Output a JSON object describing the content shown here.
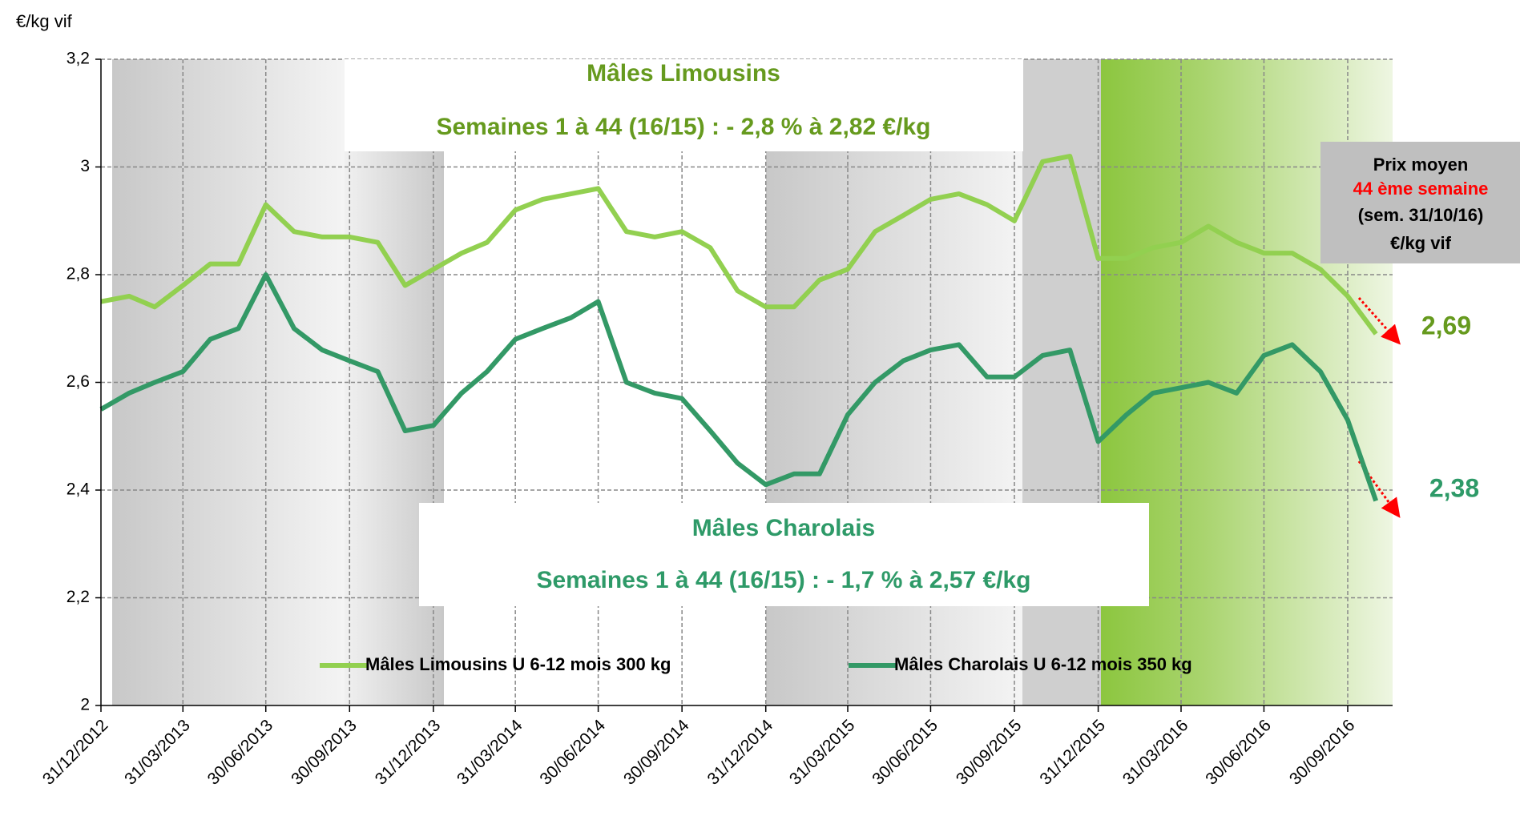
{
  "chart_data": {
    "type": "line",
    "y_label": "€/kg vif",
    "annotations": {
      "limousin_title": "Mâles Limousins",
      "limousin_sub": "Semaines 1 à 44 (16/15) : - 2,8 % à 2,82 €/kg",
      "charolais_title": "Mâles Charolais",
      "charolais_sub": "Semaines 1 à 44 (16/15) : - 1,7 % à 2,57 €/kg",
      "box_line1": "Prix moyen",
      "box_line2": "44 ème semaine",
      "box_line3": "(sem. 31/10/16)",
      "box_line4": "€/kg vif"
    },
    "x": [
      "31/12/2012",
      "31/01/2013",
      "28/02/2013",
      "31/03/2013",
      "30/04/2013",
      "31/05/2013",
      "30/06/2013",
      "31/07/2013",
      "31/08/2013",
      "30/09/2013",
      "31/10/2013",
      "30/11/2013",
      "31/12/2013",
      "31/01/2014",
      "28/02/2014",
      "31/03/2014",
      "30/04/2014",
      "31/05/2014",
      "30/06/2014",
      "31/07/2014",
      "31/08/2014",
      "30/09/2014",
      "31/10/2014",
      "30/11/2014",
      "31/12/2014",
      "31/01/2015",
      "28/02/2015",
      "31/03/2015",
      "30/04/2015",
      "31/05/2015",
      "30/06/2015",
      "31/07/2015",
      "31/08/2015",
      "30/09/2015",
      "31/10/2015",
      "30/11/2015",
      "31/12/2015",
      "31/01/2016",
      "29/02/2016",
      "31/03/2016",
      "30/04/2016",
      "31/05/2016",
      "30/06/2016",
      "31/07/2016",
      "31/08/2016",
      "30/09/2016",
      "31/10/2016"
    ],
    "series": [
      {
        "name": "Mâles Limousins U 6-12 mois 300 kg",
        "color": "#92d050",
        "label_color": "#669a1e",
        "end_label": "2,69",
        "values": [
          2.75,
          2.76,
          2.74,
          2.78,
          2.82,
          2.82,
          2.93,
          2.88,
          2.87,
          2.87,
          2.86,
          2.78,
          2.81,
          2.84,
          2.86,
          2.92,
          2.94,
          2.95,
          2.96,
          2.88,
          2.87,
          2.88,
          2.85,
          2.77,
          2.74,
          2.74,
          2.79,
          2.81,
          2.88,
          2.91,
          2.94,
          2.95,
          2.93,
          2.9,
          3.01,
          3.02,
          2.83,
          2.83,
          2.85,
          2.86,
          2.89,
          2.86,
          2.84,
          2.84,
          2.81,
          2.76,
          2.69
        ]
      },
      {
        "name": "Mâles Charolais U 6-12 mois 350 kg",
        "color": "#339966",
        "label_color": "#2e9a68",
        "end_label": "2,38",
        "values": [
          2.55,
          2.58,
          2.6,
          2.62,
          2.68,
          2.7,
          2.8,
          2.7,
          2.66,
          2.64,
          2.62,
          2.51,
          2.52,
          2.58,
          2.62,
          2.68,
          2.7,
          2.72,
          2.75,
          2.6,
          2.58,
          2.57,
          2.51,
          2.45,
          2.41,
          2.43,
          2.43,
          2.54,
          2.6,
          2.64,
          2.66,
          2.67,
          2.61,
          2.61,
          2.65,
          2.66,
          2.49,
          2.54,
          2.58,
          2.59,
          2.6,
          2.58,
          2.65,
          2.67,
          2.62,
          2.53,
          2.38
        ]
      }
    ],
    "xticks": [
      "31/12/2012",
      "31/03/2013",
      "30/06/2013",
      "30/09/2013",
      "31/12/2013",
      "31/03/2014",
      "30/06/2014",
      "30/09/2014",
      "31/12/2014",
      "31/03/2015",
      "30/06/2015",
      "30/09/2015",
      "31/12/2015",
      "31/03/2016",
      "30/06/2016",
      "30/09/2016"
    ],
    "ylim": [
      2,
      3.2
    ],
    "yticks": [
      2,
      {
        "value": 2.2,
        "label": "2,2"
      },
      {
        "value": 2.4,
        "label": "2,4"
      },
      {
        "value": 2.6,
        "label": "2,6"
      },
      {
        "value": 2.8,
        "label": "2,8"
      },
      3,
      {
        "value": 3.2,
        "label": "3,2"
      }
    ],
    "grid": true,
    "legend": "bottom"
  }
}
